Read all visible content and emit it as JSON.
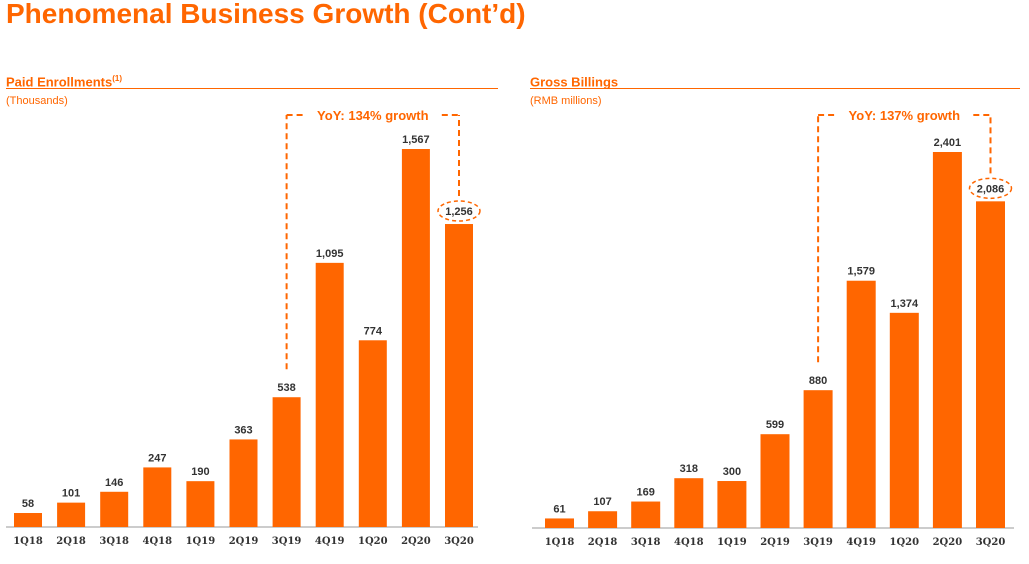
{
  "page_title": "Phenomenal Business Growth (Cont’d)",
  "colors": {
    "accent": "#FF6600",
    "label": "#333333",
    "axis": "#999999"
  },
  "chart_data": [
    {
      "type": "bar",
      "title": "Paid Enrollments",
      "title_note": "(1)",
      "unit": "(Thousands)",
      "categories": [
        "1Q18",
        "2Q18",
        "3Q18",
        "4Q18",
        "1Q19",
        "2Q19",
        "3Q19",
        "4Q19",
        "1Q20",
        "2Q20",
        "3Q20"
      ],
      "values": [
        58,
        101,
        146,
        247,
        190,
        363,
        538,
        1095,
        774,
        1567,
        1256
      ],
      "value_labels": [
        "58",
        "101",
        "146",
        "247",
        "190",
        "363",
        "538",
        "1,095",
        "774",
        "1,567",
        "1,256"
      ],
      "annotation": {
        "text": "YoY: 134% growth",
        "from": "3Q19",
        "to": "3Q20"
      },
      "highlight": "3Q20",
      "ylim": [
        0,
        1567
      ],
      "grid": false
    },
    {
      "type": "bar",
      "title": "Gross Billings",
      "title_note": "",
      "unit": "(RMB millions)",
      "categories": [
        "1Q18",
        "2Q18",
        "3Q18",
        "4Q18",
        "1Q19",
        "2Q19",
        "3Q19",
        "4Q19",
        "1Q20",
        "2Q20",
        "3Q20"
      ],
      "values": [
        61,
        107,
        169,
        318,
        300,
        599,
        880,
        1579,
        1374,
        2401,
        2086
      ],
      "value_labels": [
        "61",
        "107",
        "169",
        "318",
        "300",
        "599",
        "880",
        "1,579",
        "1,374",
        "2,401",
        "2,086"
      ],
      "annotation": {
        "text": "YoY: 137% growth",
        "from": "3Q19",
        "to": "3Q20"
      },
      "highlight": "3Q20",
      "ylim": [
        0,
        2401
      ],
      "grid": false
    }
  ]
}
